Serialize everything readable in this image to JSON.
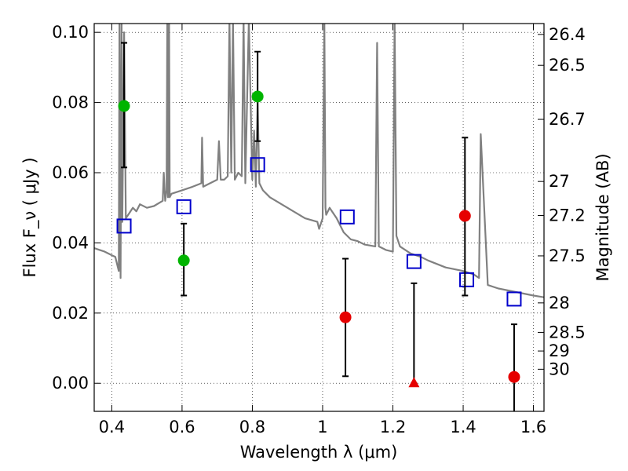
{
  "chart_data": {
    "type": "scatter",
    "title": "",
    "xlabel": "Wavelength  λ (μm)",
    "ylabel": "Flux  F_ν  ( μJy )",
    "ylabel_right": "Magnitude (AB)",
    "xlim": [
      0.35,
      1.63
    ],
    "ylim": [
      -0.008,
      0.1025
    ],
    "grid": true,
    "x_ticks": [
      {
        "value": 0.4,
        "label": "0.4"
      },
      {
        "value": 0.6,
        "label": "0.6"
      },
      {
        "value": 0.8,
        "label": "0.8"
      },
      {
        "value": 1.0,
        "label": "1"
      },
      {
        "value": 1.2,
        "label": "1.2"
      },
      {
        "value": 1.4,
        "label": "1.4"
      },
      {
        "value": 1.6,
        "label": "1.6"
      }
    ],
    "y_ticks": [
      {
        "value": 0.0,
        "label": "0.00"
      },
      {
        "value": 0.02,
        "label": "0.02"
      },
      {
        "value": 0.04,
        "label": "0.04"
      },
      {
        "value": 0.06,
        "label": "0.06"
      },
      {
        "value": 0.08,
        "label": "0.08"
      },
      {
        "value": 0.1,
        "label": "0.10"
      }
    ],
    "right_ticks": [
      {
        "flux": 0.0994,
        "label": "26.4"
      },
      {
        "flux": 0.0906,
        "label": "26.5"
      },
      {
        "flux": 0.0752,
        "label": "26.7"
      },
      {
        "flux": 0.0575,
        "label": "27"
      },
      {
        "flux": 0.0478,
        "label": "27.2"
      },
      {
        "flux": 0.0363,
        "label": "27.5"
      },
      {
        "flux": 0.0229,
        "label": "28"
      },
      {
        "flux": 0.0145,
        "label": "28.5"
      },
      {
        "flux": 0.0092,
        "label": "29"
      },
      {
        "flux": 0.004,
        "label": "30"
      }
    ],
    "series": [
      {
        "kind": "spectrum",
        "color": "#808080",
        "x": [
          0.35,
          0.38,
          0.4,
          0.41,
          0.415,
          0.42,
          0.422,
          0.425,
          0.428,
          0.43,
          0.435,
          0.44,
          0.45,
          0.46,
          0.47,
          0.48,
          0.5,
          0.52,
          0.545,
          0.548,
          0.552,
          0.556,
          0.558,
          0.56,
          0.563,
          0.565,
          0.57,
          0.6,
          0.63,
          0.655,
          0.657,
          0.66,
          0.68,
          0.7,
          0.705,
          0.71,
          0.72,
          0.73,
          0.735,
          0.74,
          0.745,
          0.75,
          0.76,
          0.77,
          0.775,
          0.78,
          0.79,
          0.8,
          0.805,
          0.81,
          0.815,
          0.82,
          0.83,
          0.85,
          0.9,
          0.95,
          0.985,
          0.99,
          1.0,
          1.005,
          1.008,
          1.01,
          1.02,
          1.04,
          1.06,
          1.08,
          1.1,
          1.12,
          1.15,
          1.155,
          1.16,
          1.18,
          1.2,
          1.205,
          1.21,
          1.22,
          1.25,
          1.28,
          1.3,
          1.35,
          1.4,
          1.43,
          1.445,
          1.45,
          1.47,
          1.5,
          1.55,
          1.6,
          1.63
        ],
        "y": [
          0.0385,
          0.0375,
          0.0365,
          0.036,
          0.034,
          0.032,
          0.12,
          0.03,
          0.12,
          0.046,
          0.1,
          0.047,
          0.0485,
          0.05,
          0.049,
          0.051,
          0.05,
          0.0505,
          0.052,
          0.06,
          0.052,
          0.055,
          0.12,
          0.053,
          0.12,
          0.053,
          0.054,
          0.055,
          0.056,
          0.057,
          0.07,
          0.056,
          0.057,
          0.058,
          0.069,
          0.058,
          0.058,
          0.059,
          0.12,
          0.06,
          0.12,
          0.058,
          0.06,
          0.059,
          0.12,
          0.057,
          0.12,
          0.058,
          0.072,
          0.056,
          0.08,
          0.057,
          0.055,
          0.053,
          0.05,
          0.047,
          0.046,
          0.044,
          0.047,
          0.12,
          0.05,
          0.048,
          0.05,
          0.047,
          0.043,
          0.041,
          0.0405,
          0.0395,
          0.039,
          0.097,
          0.039,
          0.038,
          0.0375,
          0.12,
          0.042,
          0.039,
          0.037,
          0.036,
          0.035,
          0.033,
          0.032,
          0.031,
          0.03,
          0.071,
          0.028,
          0.027,
          0.026,
          0.025,
          0.0245
        ]
      },
      {
        "kind": "model_squares",
        "color": "#0000cc",
        "x": [
          0.435,
          0.605,
          0.815,
          1.07,
          1.26,
          1.41,
          1.545
        ],
        "y": [
          0.0448,
          0.0503,
          0.0623,
          0.0474,
          0.0347,
          0.0295,
          0.024
        ]
      },
      {
        "kind": "detections",
        "color": "#00b400",
        "x": [
          0.435,
          0.605,
          0.815
        ],
        "y": [
          0.079,
          0.035,
          0.0817
        ],
        "err_low": [
          0.0615,
          0.025,
          0.069
        ],
        "err_high": [
          0.097,
          0.0455,
          0.0945
        ]
      },
      {
        "kind": "non_detections",
        "color": "#e60000",
        "x": [
          1.065,
          1.405,
          1.545
        ],
        "y": [
          0.0188,
          0.0477,
          0.0018
        ],
        "err_low": [
          0.002,
          0.025,
          -0.008
        ],
        "err_high": [
          0.0355,
          0.07,
          0.0168
        ]
      },
      {
        "kind": "upper_limit",
        "color": "#e60000",
        "x": [
          1.26
        ],
        "y": [
          0.0
        ],
        "err_low": [
          0.0
        ],
        "err_high": [
          0.0285
        ]
      }
    ]
  }
}
